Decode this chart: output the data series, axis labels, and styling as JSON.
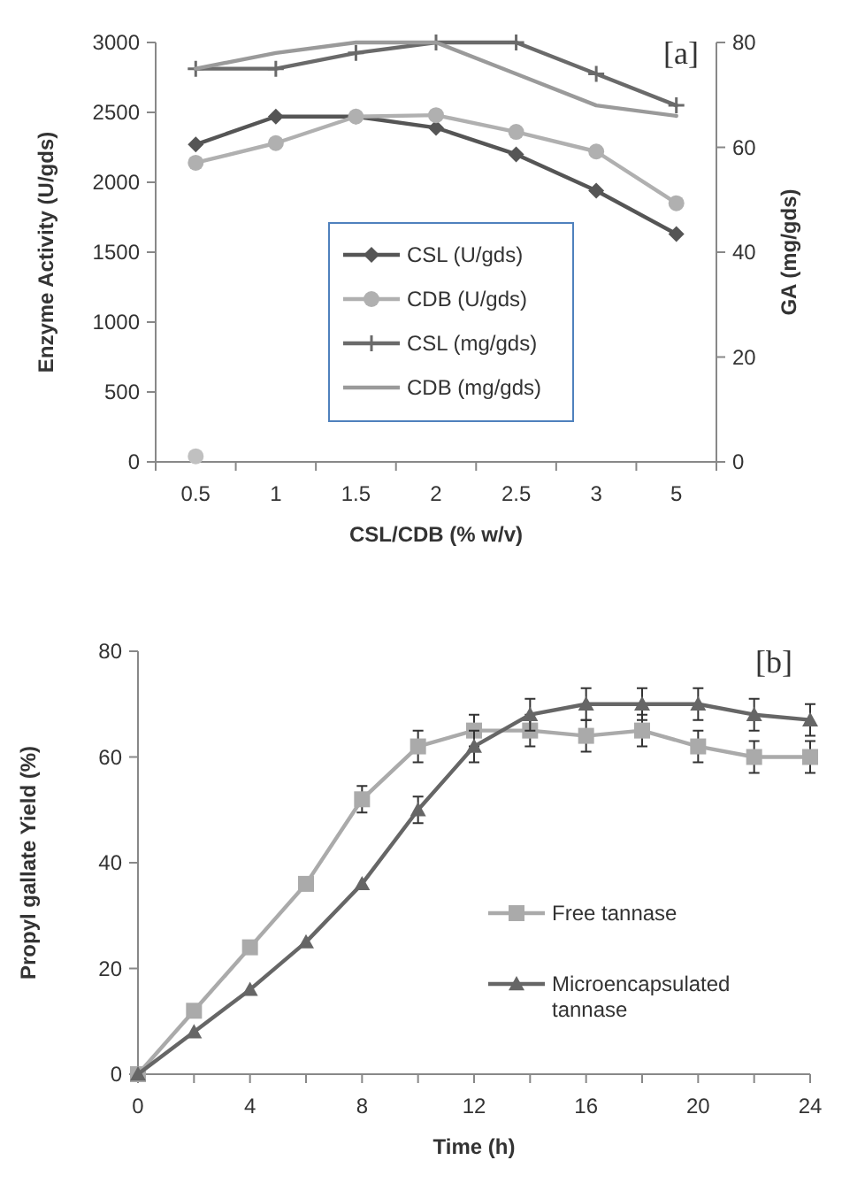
{
  "chart_data": [
    {
      "type": "line",
      "xlabel": "CSL/CDB (% w/v)",
      "ylabel": "Enzyme Activity (U/gds)",
      "y2label": "GA (mg/gds)",
      "annotations": [
        "[a]"
      ],
      "categories": [
        "0.5",
        "1",
        "1.5",
        "2",
        "2.5",
        "3",
        "5"
      ],
      "ylim": [
        0,
        3000
      ],
      "yticks": [
        0,
        500,
        1000,
        1500,
        2000,
        2500,
        3000
      ],
      "y2lim": [
        0,
        80
      ],
      "y2ticks": [
        0,
        20,
        40,
        60,
        80
      ],
      "legend": "center",
      "series": [
        {
          "name": "CSL (U/gds)",
          "color": "#555555",
          "marker": "diamond",
          "values": [
            2270,
            2470,
            2470,
            2390,
            2200,
            1940,
            1630
          ]
        },
        {
          "name": "CDB (U/gds)",
          "color": "#b0b0b0",
          "marker": "circle",
          "values": [
            2140,
            2280,
            2470,
            2480,
            2360,
            2220,
            1850
          ]
        },
        {
          "name": "CSL (mg/gds)",
          "color": "#6a6a6a",
          "marker": "cross",
          "axis": "y2",
          "values": [
            75,
            75,
            78,
            80,
            80,
            74,
            68
          ]
        },
        {
          "name": "CDB (mg/gds)",
          "color": "#9a9a9a",
          "marker": "none",
          "axis": "y2",
          "values": [
            75,
            78,
            80,
            80,
            74,
            68,
            66
          ]
        },
        {
          "type": "scatter",
          "color": "#c0c0c0",
          "marker": "circle",
          "values": [
            40,
            null,
            null,
            null,
            null,
            null,
            null
          ]
        }
      ]
    },
    {
      "type": "line",
      "xlabel": "Time (h)",
      "ylabel": "Propyl gallate Yield (%)",
      "annotations": [
        "[b]"
      ],
      "x": [
        0,
        2,
        4,
        6,
        8,
        10,
        12,
        14,
        16,
        18,
        20,
        22,
        24
      ],
      "xlim": [
        0,
        24
      ],
      "xticks": [
        0,
        {
          "value": 2,
          "label": null
        },
        4,
        {
          "value": 6,
          "label": null
        },
        8,
        {
          "value": 10,
          "label": null
        },
        12,
        {
          "value": 14,
          "label": null
        },
        16,
        {
          "value": 18,
          "label": null
        },
        20,
        {
          "value": 22,
          "label": null
        },
        24
      ],
      "ylim": [
        0,
        80
      ],
      "yticks": [
        0,
        20,
        40,
        60,
        80
      ],
      "legend": "right",
      "series": [
        {
          "name": "Free tannase",
          "color": "#aaaaaa",
          "marker": "square",
          "values": [
            0,
            12,
            24,
            36,
            52,
            62,
            65,
            65,
            64,
            65,
            62,
            60,
            60
          ],
          "errors": [
            null,
            null,
            null,
            null,
            2.5,
            3,
            3,
            3,
            3,
            3,
            3,
            3,
            3
          ]
        },
        {
          "name": "Microencapsulated tannase",
          "color": "#666666",
          "marker": "triangle",
          "values": [
            0,
            8,
            16,
            25,
            36,
            50,
            62,
            68,
            70,
            70,
            70,
            68,
            67
          ],
          "errors": [
            null,
            null,
            null,
            null,
            null,
            2.5,
            3,
            3,
            3,
            3,
            3,
            3,
            3
          ]
        }
      ]
    }
  ]
}
